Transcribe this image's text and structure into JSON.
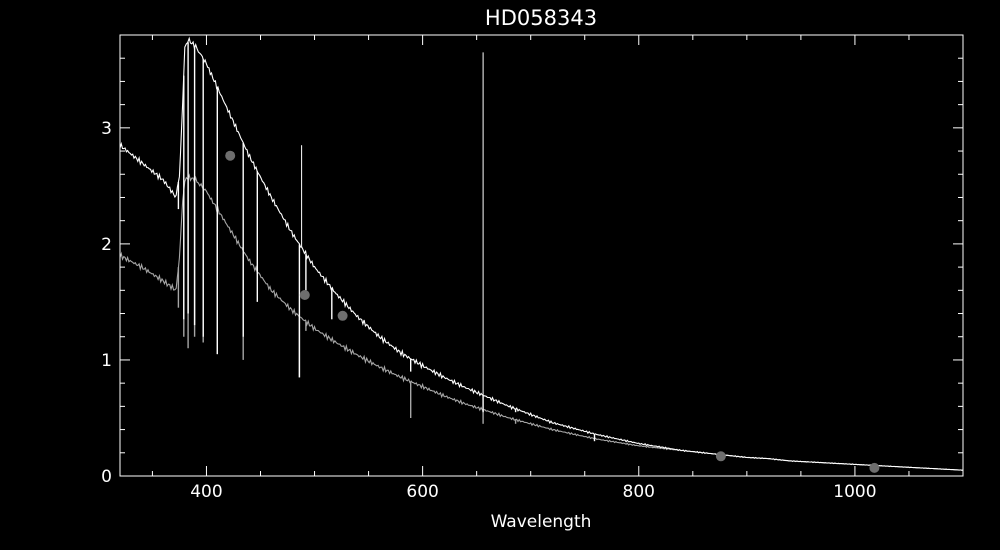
{
  "chart_data": {
    "type": "line",
    "title": "HD058343",
    "xlabel": "Wavelength",
    "ylabel": "",
    "xlim": [
      320,
      1100
    ],
    "ylim": [
      0,
      3.8
    ],
    "xticks": [
      400,
      600,
      800,
      1000
    ],
    "xtick_labels": [
      "400",
      "600",
      "800",
      "1000"
    ],
    "yticks": [
      0,
      1,
      2,
      3
    ],
    "ytick_labels": [
      "0",
      "1",
      "2",
      "3"
    ],
    "grid": false,
    "colors": {
      "background": "#000000",
      "axes": "#ffffff",
      "series_upper": "#ffffff",
      "series_lower": "#a6a6a6",
      "markers": "#6e6e6e"
    },
    "series": [
      {
        "x": [
          320,
          340,
          360,
          372,
          375,
          378,
          380,
          384,
          390,
          400,
          420,
          440,
          460,
          480,
          500,
          520,
          540,
          560,
          580,
          600,
          620,
          640,
          660,
          680,
          700,
          720,
          740,
          760,
          780,
          800,
          820,
          840,
          860,
          880,
          900,
          920,
          940,
          960,
          980,
          1000,
          1020,
          1040,
          1060,
          1080,
          1100
        ],
        "y": [
          2.85,
          2.7,
          2.55,
          2.4,
          2.6,
          3.2,
          3.7,
          3.75,
          3.7,
          3.55,
          3.15,
          2.75,
          2.4,
          2.08,
          1.8,
          1.57,
          1.37,
          1.2,
          1.06,
          0.95,
          0.85,
          0.76,
          0.68,
          0.6,
          0.53,
          0.46,
          0.41,
          0.36,
          0.32,
          0.28,
          0.25,
          0.22,
          0.2,
          0.18,
          0.16,
          0.15,
          0.13,
          0.12,
          0.11,
          0.1,
          0.09,
          0.08,
          0.07,
          0.06,
          0.05
        ],
        "lines": [
          {
            "x": 374,
            "y": 2.3
          },
          {
            "x": 379,
            "y": 1.35
          },
          {
            "x": 383,
            "y": 1.4
          },
          {
            "x": 389,
            "y": 1.3
          },
          {
            "x": 397,
            "y": 1.2
          },
          {
            "x": 410,
            "y": 1.05
          },
          {
            "x": 434,
            "y": 1.2
          },
          {
            "x": 447,
            "y": 1.5
          },
          {
            "x": 486,
            "y": 0.85
          },
          {
            "x": 492,
            "y": 1.6
          },
          {
            "x": 516,
            "y": 1.35
          },
          {
            "x": 589,
            "y": 0.9
          },
          {
            "x": 656,
            "y": 0.55
          },
          {
            "x": 686,
            "y": 0.55
          },
          {
            "x": 759,
            "y": 0.3
          }
        ],
        "emission_spikes": [
          {
            "x": 488,
            "y": 2.85
          },
          {
            "x": 656,
            "y": 3.65
          }
        ]
      },
      {
        "x": [
          320,
          340,
          360,
          372,
          375,
          378,
          380,
          384,
          390,
          400,
          420,
          440,
          460,
          480,
          500,
          520,
          540,
          560,
          580,
          600,
          620,
          640,
          660,
          680,
          700,
          720,
          740,
          760,
          780,
          800,
          820,
          840,
          860,
          880,
          900,
          920,
          940,
          960,
          980,
          1000,
          1020,
          1040,
          1060,
          1080,
          1100
        ],
        "y": [
          1.9,
          1.8,
          1.68,
          1.6,
          1.9,
          2.35,
          2.55,
          2.57,
          2.55,
          2.45,
          2.15,
          1.85,
          1.6,
          1.42,
          1.27,
          1.15,
          1.04,
          0.94,
          0.85,
          0.77,
          0.69,
          0.62,
          0.56,
          0.5,
          0.45,
          0.4,
          0.36,
          0.32,
          0.29,
          0.26,
          0.24,
          0.22,
          0.2,
          0.18,
          0.16,
          0.15,
          0.13,
          0.12,
          0.11,
          0.1,
          0.09,
          0.08,
          0.07,
          0.06,
          0.05
        ],
        "lines": [
          {
            "x": 374,
            "y": 1.45
          },
          {
            "x": 379,
            "y": 1.2
          },
          {
            "x": 383,
            "y": 1.1
          },
          {
            "x": 389,
            "y": 1.2
          },
          {
            "x": 397,
            "y": 1.15
          },
          {
            "x": 410,
            "y": 1.05
          },
          {
            "x": 434,
            "y": 1.0
          },
          {
            "x": 486,
            "y": 0.85
          },
          {
            "x": 492,
            "y": 1.25
          },
          {
            "x": 589,
            "y": 0.5
          },
          {
            "x": 656,
            "y": 0.45
          },
          {
            "x": 686,
            "y": 0.45
          }
        ],
        "emission_spikes": []
      },
      {
        "type": "scatter",
        "x": [
          422,
          491,
          526,
          876,
          1018
        ],
        "y": [
          2.76,
          1.56,
          1.38,
          0.17,
          0.07
        ]
      }
    ]
  }
}
